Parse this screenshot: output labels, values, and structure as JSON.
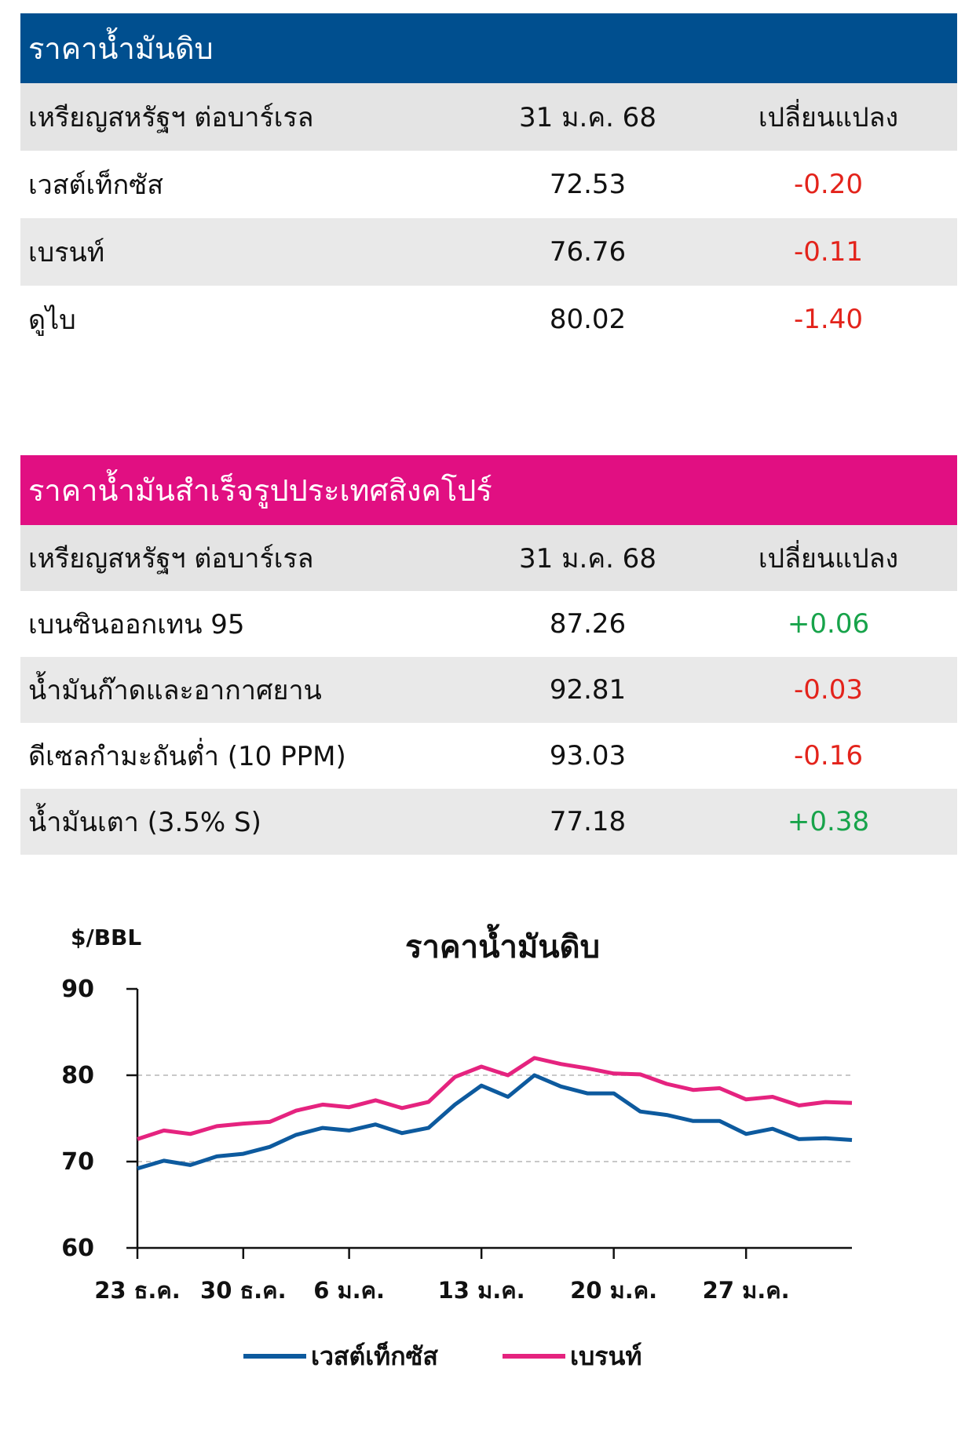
{
  "crude_table": {
    "title": "ราคาน้ำมันดิบ",
    "header": [
      "เหรียญสหรัฐฯ ต่อบาร์เรล",
      "31 ม.ค. 68",
      "เปลี่ยนแปลง"
    ],
    "rows": [
      {
        "name": "เวสต์เท็กซัส",
        "price": "72.53",
        "change": "-0.20",
        "direction": "down"
      },
      {
        "name": "เบรนท์",
        "price": "76.76",
        "change": "-0.11",
        "direction": "down"
      },
      {
        "name": "ดูไบ",
        "price": "80.02",
        "change": "-1.40",
        "direction": "down"
      }
    ]
  },
  "singapore_table": {
    "title": "ราคาน้ำมันสำเร็จรูปประเทศสิงคโปร์",
    "header": [
      "เหรียญสหรัฐฯ ต่อบาร์เรล",
      "31 ม.ค. 68",
      "เปลี่ยนแปลง"
    ],
    "rows": [
      {
        "name": "เบนซินออกเทน 95",
        "price": "87.26",
        "change": "+0.06",
        "direction": "up"
      },
      {
        "name": "น้ำมันก๊าดและอากาศยาน",
        "price": "92.81",
        "change": "-0.03",
        "direction": "down"
      },
      {
        "name": "ดีเซลกำมะถันต่ำ (10 PPM)",
        "price": "93.03",
        "change": "-0.16",
        "direction": "down"
      },
      {
        "name": "น้ำมันเตา (3.5% S)",
        "price": "77.18",
        "change": "+0.38",
        "direction": "up"
      }
    ]
  },
  "colors": {
    "blue": "#004f8f",
    "pink": "#e10f82",
    "negative": "#e3231b",
    "positive": "#17a34a"
  },
  "chart_data": {
    "type": "line",
    "title": "ราคาน้ำมันดิบ",
    "ylabel": "$/BBL",
    "ylim": [
      60,
      90
    ],
    "yticks": [
      "90",
      "80",
      "70",
      "60"
    ],
    "xtick_labels": [
      "23 ธ.ค.",
      "30 ธ.ค.",
      "6 ม.ค.",
      "13 ม.ค.",
      "20 ม.ค.",
      "27 ม.ค."
    ],
    "grid": "dashed horizontal",
    "legend_position": "bottom",
    "x": [
      "23 ธ.ค.",
      "24 ธ.ค.",
      "26 ธ.ค.",
      "27 ธ.ค.",
      "30 ธ.ค.",
      "31 ธ.ค.",
      "2 ม.ค.",
      "3 ม.ค.",
      "6 ม.ค.",
      "7 ม.ค.",
      "8 ม.ค.",
      "9 ม.ค.",
      "10 ม.ค.",
      "13 ม.ค.",
      "14 ม.ค.",
      "15 ม.ค.",
      "16 ม.ค.",
      "17 ม.ค.",
      "20 ม.ค.",
      "21 ม.ค.",
      "22 ม.ค.",
      "23 ม.ค.",
      "24 ม.ค.",
      "27 ม.ค.",
      "28 ม.ค.",
      "29 ม.ค.",
      "30 ม.ค.",
      "31 ม.ค."
    ],
    "series": [
      {
        "name": "เวสต์เท็กซัส",
        "color": "#0d5a9e",
        "values": [
          69.2,
          70.1,
          69.6,
          70.6,
          70.9,
          71.7,
          73.1,
          73.9,
          73.6,
          74.3,
          73.3,
          73.9,
          76.6,
          78.8,
          77.5,
          80.0,
          78.7,
          77.9,
          77.9,
          75.8,
          75.4,
          74.7,
          74.7,
          73.2,
          73.8,
          72.6,
          72.7,
          72.5
        ]
      },
      {
        "name": "เบรนท์",
        "color": "#e5237f",
        "values": [
          72.6,
          73.6,
          73.2,
          74.1,
          74.4,
          74.6,
          75.9,
          76.6,
          76.3,
          77.1,
          76.2,
          76.9,
          79.8,
          81.0,
          80.0,
          82.0,
          81.3,
          80.8,
          80.2,
          80.1,
          79.0,
          78.3,
          78.5,
          77.2,
          77.5,
          76.5,
          76.9,
          76.8
        ]
      }
    ]
  }
}
